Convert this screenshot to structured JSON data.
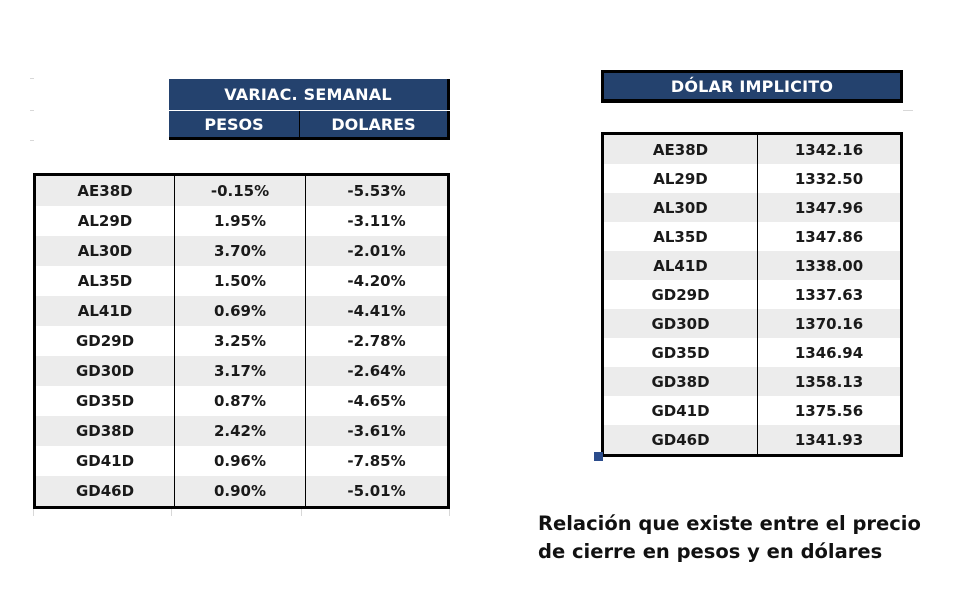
{
  "variacion": {
    "title": "VARIAC. SEMANAL",
    "col_pesos": "PESOS",
    "col_dolares": "DOLARES",
    "rows": [
      {
        "bond": "AE38D",
        "pesos": "-0.15%",
        "dolares": "-5.53%"
      },
      {
        "bond": "AL29D",
        "pesos": "1.95%",
        "dolares": "-3.11%"
      },
      {
        "bond": "AL30D",
        "pesos": "3.70%",
        "dolares": "-2.01%"
      },
      {
        "bond": "AL35D",
        "pesos": "1.50%",
        "dolares": "-4.20%"
      },
      {
        "bond": "AL41D",
        "pesos": "0.69%",
        "dolares": "-4.41%"
      },
      {
        "bond": "GD29D",
        "pesos": "3.25%",
        "dolares": "-2.78%"
      },
      {
        "bond": "GD30D",
        "pesos": "3.17%",
        "dolares": "-2.64%"
      },
      {
        "bond": "GD35D",
        "pesos": "0.87%",
        "dolares": "-4.65%"
      },
      {
        "bond": "GD38D",
        "pesos": "2.42%",
        "dolares": "-3.61%"
      },
      {
        "bond": "GD41D",
        "pesos": "0.96%",
        "dolares": "-7.85%"
      },
      {
        "bond": "GD46D",
        "pesos": "0.90%",
        "dolares": "-5.01%"
      }
    ]
  },
  "dolar_implicito": {
    "title": "DÓLAR IMPLICITO",
    "rows": [
      {
        "bond": "AE38D",
        "value": "1342.16"
      },
      {
        "bond": "AL29D",
        "value": "1332.50"
      },
      {
        "bond": "AL30D",
        "value": "1347.96"
      },
      {
        "bond": "AL35D",
        "value": "1347.86"
      },
      {
        "bond": "AL41D",
        "value": "1338.00"
      },
      {
        "bond": "GD29D",
        "value": "1337.63"
      },
      {
        "bond": "GD30D",
        "value": "1370.16"
      },
      {
        "bond": "GD35D",
        "value": "1346.94"
      },
      {
        "bond": "GD38D",
        "value": "1358.13"
      },
      {
        "bond": "GD41D",
        "value": "1375.56"
      },
      {
        "bond": "GD46D",
        "value": "1341.93"
      }
    ]
  },
  "note": {
    "line1": "Relación que existe entre el precio",
    "line2": "de cierre en pesos y en dólares"
  },
  "colors": {
    "header_bg": "#24426e",
    "header_text": "#ffffff",
    "row_shade": "#ececec"
  }
}
